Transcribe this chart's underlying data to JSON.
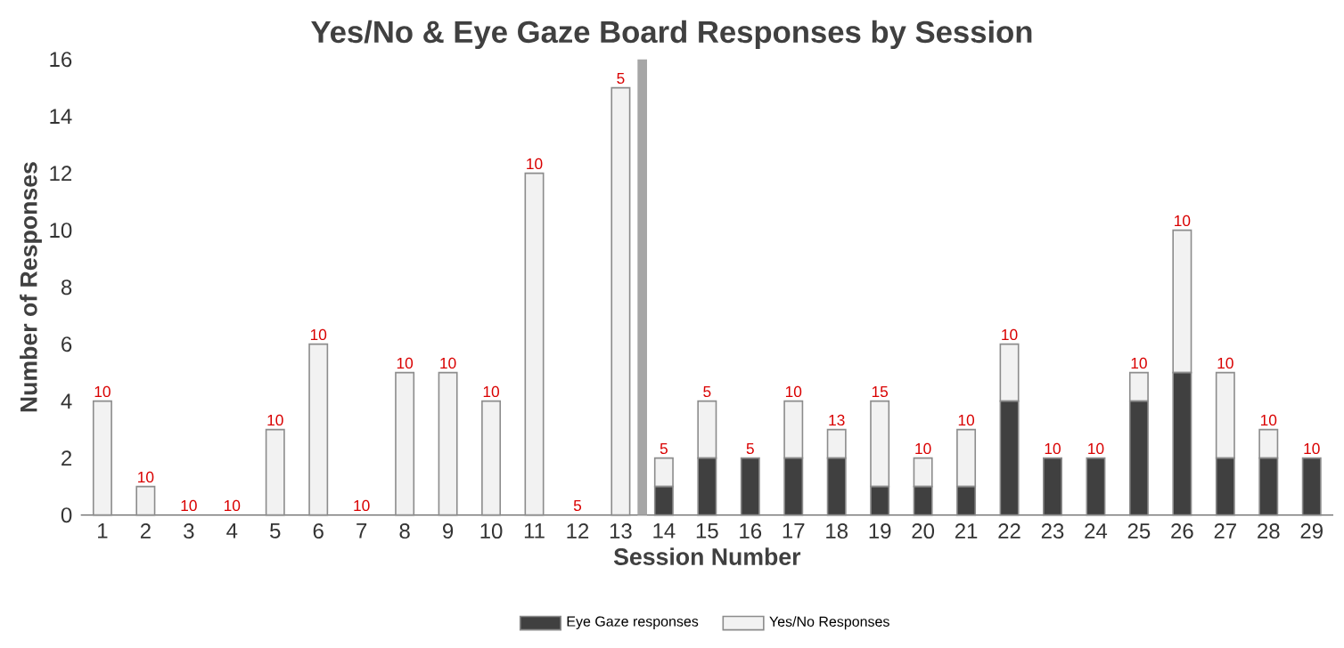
{
  "chart_data": {
    "type": "bar",
    "stacked": true,
    "title": "Yes/No & Eye Gaze Board Responses by Session",
    "xlabel": "Session Number",
    "ylabel": "Number of Responses",
    "x": [
      1,
      2,
      3,
      4,
      5,
      6,
      7,
      8,
      9,
      10,
      11,
      12,
      13,
      14,
      15,
      16,
      17,
      18,
      19,
      20,
      21,
      22,
      23,
      24,
      25,
      26,
      27,
      28,
      29
    ],
    "xlim": [
      0.5,
      29.5
    ],
    "xticks": [
      1,
      2,
      3,
      4,
      5,
      6,
      7,
      8,
      9,
      10,
      11,
      12,
      13,
      14,
      15,
      16,
      17,
      18,
      19,
      20,
      21,
      22,
      23,
      24,
      25,
      26,
      27,
      28,
      29
    ],
    "ylim": [
      0,
      16
    ],
    "yticks": [
      0,
      2,
      4,
      6,
      8,
      10,
      12,
      14,
      16
    ],
    "series": [
      {
        "name": "Eye Gaze responses",
        "color": "#404040",
        "values": [
          0,
          0,
          0,
          0,
          0,
          0,
          0,
          0,
          0,
          0,
          0,
          0,
          0,
          1,
          2,
          2,
          2,
          2,
          1,
          1,
          1,
          4,
          2,
          2,
          4,
          5,
          2,
          2,
          2
        ]
      },
      {
        "name": "Yes/No Responses",
        "color": "#f2f2f2",
        "values": [
          4,
          1,
          0,
          0,
          3,
          6,
          0,
          5,
          5,
          4,
          12,
          0,
          15,
          1,
          2,
          0,
          2,
          1,
          3,
          1,
          2,
          2,
          0,
          0,
          1,
          5,
          3,
          1,
          0
        ]
      }
    ],
    "ref_lines": [
      {
        "axis": "x",
        "value": 13.5,
        "color": "#a6a6a6"
      }
    ],
    "legend": "bottom",
    "grid": false,
    "annotations": [
      {
        "text": "10",
        "x": 1,
        "y": 4
      },
      {
        "text": "10",
        "x": 2,
        "y": 1
      },
      {
        "text": "10",
        "x": 3,
        "y": 0
      },
      {
        "text": "10",
        "x": 4,
        "y": 0
      },
      {
        "text": "10",
        "x": 5,
        "y": 3
      },
      {
        "text": "10",
        "x": 6,
        "y": 6
      },
      {
        "text": "10",
        "x": 7,
        "y": 0
      },
      {
        "text": "10",
        "x": 8,
        "y": 5
      },
      {
        "text": "10",
        "x": 9,
        "y": 5
      },
      {
        "text": "10",
        "x": 10,
        "y": 4
      },
      {
        "text": "10",
        "x": 11,
        "y": 12
      },
      {
        "text": "5",
        "x": 12,
        "y": 0
      },
      {
        "text": "5",
        "x": 13,
        "y": 15
      },
      {
        "text": "5",
        "x": 14,
        "y": 2
      },
      {
        "text": "5",
        "x": 15,
        "y": 4
      },
      {
        "text": "5",
        "x": 16,
        "y": 2
      },
      {
        "text": "10",
        "x": 17,
        "y": 4
      },
      {
        "text": "13",
        "x": 18,
        "y": 3
      },
      {
        "text": "15",
        "x": 19,
        "y": 4
      },
      {
        "text": "10",
        "x": 20,
        "y": 2
      },
      {
        "text": "10",
        "x": 21,
        "y": 3
      },
      {
        "text": "10",
        "x": 22,
        "y": 6
      },
      {
        "text": "10",
        "x": 23,
        "y": 2
      },
      {
        "text": "10",
        "x": 24,
        "y": 2
      },
      {
        "text": "10",
        "x": 25,
        "y": 5
      },
      {
        "text": "10",
        "x": 26,
        "y": 10
      },
      {
        "text": "10",
        "x": 27,
        "y": 5
      },
      {
        "text": "10",
        "x": 28,
        "y": 3
      },
      {
        "text": "10",
        "x": 29,
        "y": 2
      }
    ]
  }
}
